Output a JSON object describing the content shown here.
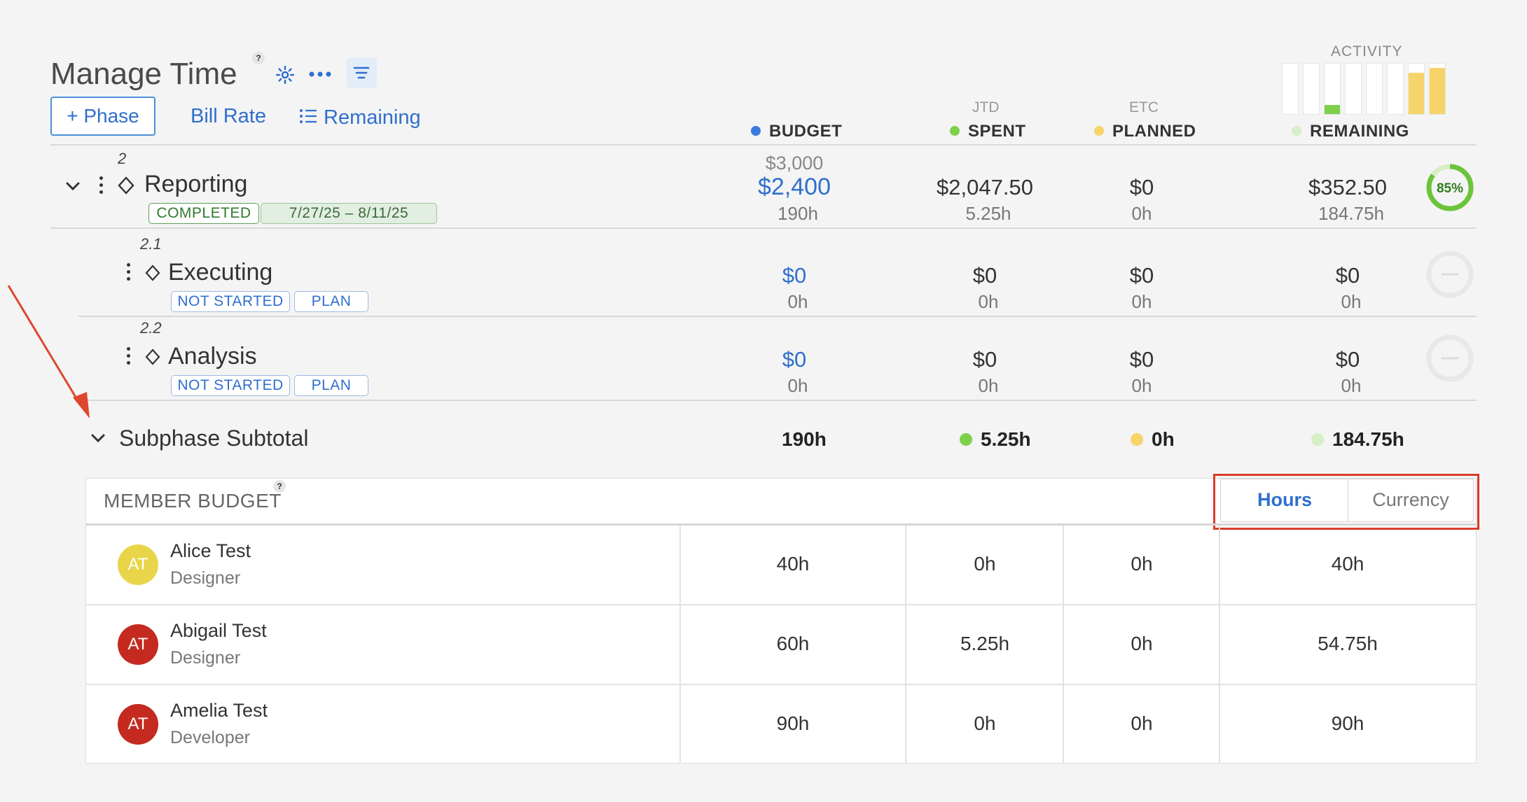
{
  "header": {
    "title": "Manage Time",
    "help_mark": "?",
    "phase_button": "+ Phase",
    "bill_rate_link": "Bill Rate",
    "remaining_link": "Remaining",
    "activity_label": "ACTIVITY",
    "activity_levels": [
      0,
      0,
      0.18,
      0,
      0,
      0,
      0.82,
      0.92
    ]
  },
  "columns": {
    "budget": "BUDGET",
    "spent_sub": "JTD",
    "spent": "SPENT",
    "planned_sub": "ETC",
    "planned": "PLANNED",
    "remaining": "REMAINING"
  },
  "colors": {
    "budget": "#3b7be0",
    "spent": "#7ed04a",
    "planned": "#f7d46a",
    "remaining": "#d6efc6",
    "accent_red": "#d93b2b"
  },
  "phase": {
    "number": "2",
    "name": "Reporting",
    "status": "COMPLETED",
    "dates": "7/27/25  –  8/11/25",
    "budget_top": "$3,000",
    "budget": "$2,400",
    "budget_hours": "190h",
    "spent": "$2,047.50",
    "spent_hours": "5.25h",
    "planned": "$0",
    "planned_hours": "0h",
    "remaining": "$352.50",
    "remaining_hours": "184.75h",
    "progress_label": "85%",
    "progress": 0.85
  },
  "subphases": [
    {
      "number": "2.1",
      "name": "Executing",
      "status": "NOT STARTED",
      "plan": "PLAN",
      "budget": "$0",
      "budget_hours": "0h",
      "spent": "$0",
      "spent_hours": "0h",
      "planned": "$0",
      "planned_hours": "0h",
      "remaining": "$0",
      "remaining_hours": "0h"
    },
    {
      "number": "2.2",
      "name": "Analysis",
      "status": "NOT STARTED",
      "plan": "PLAN",
      "budget": "$0",
      "budget_hours": "0h",
      "spent": "$0",
      "spent_hours": "0h",
      "planned": "$0",
      "planned_hours": "0h",
      "remaining": "$0",
      "remaining_hours": "0h"
    }
  ],
  "subtotal": {
    "label": "Subphase Subtotal",
    "budget": "190h",
    "spent": "5.25h",
    "planned": "0h",
    "remaining": "184.75h"
  },
  "member_budget": {
    "title": "MEMBER BUDGET",
    "toggle_hours": "Hours",
    "toggle_currency": "Currency",
    "members": [
      {
        "initials": "AT",
        "name": "Alice Test",
        "role": "Designer",
        "avatar_color": "#e8d54a",
        "budget": "40h",
        "spent": "0h",
        "planned": "0h",
        "remaining": "40h"
      },
      {
        "initials": "AT",
        "name": "Abigail Test",
        "role": "Designer",
        "avatar_color": "#c42a1f",
        "budget": "60h",
        "spent": "5.25h",
        "planned": "0h",
        "remaining": "54.75h"
      },
      {
        "initials": "AT",
        "name": "Amelia Test",
        "role": "Developer",
        "avatar_color": "#c42a1f",
        "budget": "90h",
        "spent": "0h",
        "planned": "0h",
        "remaining": "90h"
      }
    ]
  }
}
